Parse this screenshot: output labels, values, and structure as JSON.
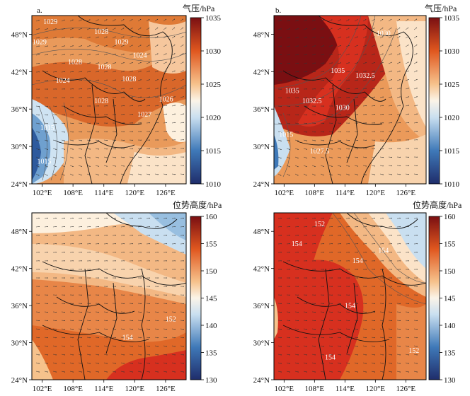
{
  "chart_data": [
    {
      "type": "heatmap",
      "panel_label": "a.",
      "variable": "sea level pressure",
      "colorbar_title": "气压/hPa",
      "colorbar_ticks": [
        1035,
        1030,
        1025,
        1020,
        1015,
        1010
      ],
      "x_ticks": [
        "102°E",
        "108°E",
        "114°E",
        "120°E",
        "126°E"
      ],
      "y_ticks": [
        "48°N",
        "42°N",
        "36°N",
        "30°N",
        "24°N"
      ],
      "xlim": [
        100,
        130
      ],
      "ylim": [
        24,
        51
      ],
      "contour_labels": [
        "1029",
        "1028",
        "1029",
        "1028",
        "1028",
        "1024",
        "1028",
        "1028",
        "1027",
        "1026",
        "1024",
        "1029",
        "1015",
        "1015"
      ]
    },
    {
      "type": "heatmap",
      "panel_label": "b.",
      "variable": "sea level pressure",
      "colorbar_title": "气压/hPa",
      "colorbar_ticks": [
        1035,
        1030,
        1025,
        1020,
        1015,
        1010
      ],
      "x_ticks": [
        "102°E",
        "108°E",
        "114°E",
        "120°E",
        "126°E"
      ],
      "y_ticks": [
        "48°N",
        "42°N",
        "36°N",
        "30°N",
        "24°N"
      ],
      "xlim": [
        100,
        130
      ],
      "ylim": [
        24,
        51
      ],
      "contour_labels": [
        "1030",
        "1035",
        "1032.5",
        "1035",
        "1032.5",
        "1030",
        "1027.5",
        "1015"
      ]
    },
    {
      "type": "heatmap",
      "panel_label": "",
      "variable": "geopotential height",
      "colorbar_title": "位势高度/hPa",
      "colorbar_ticks": [
        160,
        155,
        150,
        145,
        140,
        135,
        130
      ],
      "x_ticks": [
        "102°E",
        "108°E",
        "114°E",
        "120°E",
        "126°E"
      ],
      "y_ticks": [
        "48°N",
        "42°N",
        "36°N",
        "30°N",
        "24°N"
      ],
      "xlim": [
        100,
        130
      ],
      "ylim": [
        24,
        51
      ],
      "contour_labels": [
        "152",
        "154"
      ]
    },
    {
      "type": "heatmap",
      "panel_label": "",
      "variable": "geopotential height",
      "colorbar_title": "位势高度/hPa",
      "colorbar_ticks": [
        160,
        155,
        150,
        145,
        140,
        135,
        130
      ],
      "x_ticks": [
        "102°E",
        "108°E",
        "114°E",
        "120°E",
        "126°E"
      ],
      "y_ticks": [
        "48°N",
        "42°N",
        "36°N",
        "30°N",
        "24°N"
      ],
      "xlim": [
        100,
        130
      ],
      "ylim": [
        24,
        51
      ],
      "contour_labels": [
        "152",
        "154",
        "154",
        "154",
        "154",
        "152",
        "154"
      ]
    }
  ]
}
